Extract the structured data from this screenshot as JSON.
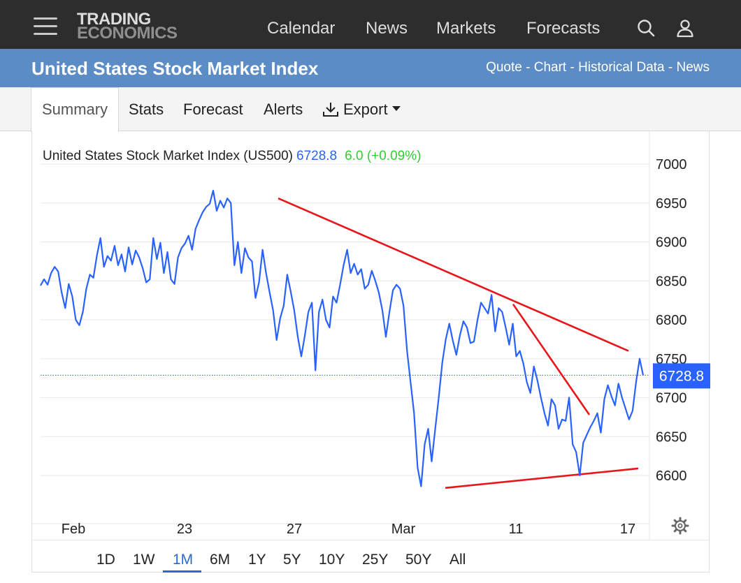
{
  "brand": {
    "line1": "TRADING",
    "line2": "ECONOMICS"
  },
  "nav": {
    "calendar": "Calendar",
    "news": "News",
    "markets": "Markets",
    "forecasts": "Forecasts",
    "search_icon": "search-icon",
    "user_icon": "user-icon"
  },
  "page": {
    "title": "United States Stock Market Index",
    "links": "Quote - Chart - Historical Data - News"
  },
  "tabs": {
    "summary": "Summary",
    "stats": "Stats",
    "forecast": "Forecast",
    "alerts": "Alerts",
    "export": "Export"
  },
  "quote": {
    "name": "United States Stock Market Index (US500)",
    "price": "6728.8",
    "change": "6.0 (+0.09%)",
    "last_label": "6728.8"
  },
  "ranges": [
    "1D",
    "1W",
    "1M",
    "6M",
    "1Y",
    "5Y",
    "10Y",
    "25Y",
    "50Y",
    "All"
  ],
  "active_range": "1M",
  "colors": {
    "line": "#2962ff",
    "trend": "#e8161b",
    "up": "#33cc33",
    "accent": "#2b6ac9",
    "title_bar": "#5c8cc5",
    "nav": "#2d2d2d"
  },
  "chart_data": {
    "type": "line",
    "x_tick_labels": [
      "Feb",
      "23",
      "27",
      "Mar",
      "11",
      "17"
    ],
    "y_ticks": [
      6600,
      6650,
      6700,
      6750,
      6800,
      6850,
      6900,
      6950,
      7000
    ],
    "ylim": [
      6550,
      7010
    ],
    "last_value": 6728.8,
    "grid": true,
    "series": [
      {
        "values": [
          6844,
          6852,
          6845,
          6860,
          6868,
          6862,
          6835,
          6815,
          6846,
          6830,
          6800,
          6793,
          6810,
          6840,
          6858,
          6854,
          6883,
          6905,
          6868,
          6882,
          6876,
          6895,
          6870,
          6884,
          6862,
          6893,
          6871,
          6889,
          6880,
          6866,
          6848,
          6852,
          6905,
          6878,
          6899,
          6860,
          6887,
          6852,
          6846,
          6880,
          6892,
          6898,
          6908,
          6890,
          6917,
          6928,
          6938,
          6945,
          6949,
          6966,
          6940,
          6953,
          6944,
          6956,
          6950,
          6870,
          6900,
          6860,
          6892,
          6880,
          6875,
          6828,
          6848,
          6890,
          6860,
          6835,
          6812,
          6774,
          6802,
          6818,
          6858,
          6836,
          6812,
          6778,
          6753,
          6780,
          6810,
          6822,
          6735,
          6810,
          6826,
          6800,
          6790,
          6830,
          6822,
          6845,
          6870,
          6890,
          6860,
          6872,
          6858,
          6865,
          6840,
          6845,
          6863,
          6850,
          6835,
          6812,
          6778,
          6810,
          6838,
          6845,
          6840,
          6818,
          6760,
          6720,
          6680,
          6610,
          6586,
          6640,
          6660,
          6618,
          6660,
          6700,
          6745,
          6775,
          6795,
          6773,
          6755,
          6780,
          6798,
          6790,
          6770,
          6772,
          6800,
          6822,
          6815,
          6808,
          6832,
          6785,
          6815,
          6810,
          6790,
          6768,
          6795,
          6753,
          6760,
          6744,
          6720,
          6706,
          6740,
          6722,
          6700,
          6680,
          6664,
          6698,
          6690,
          6660,
          6672,
          6670,
          6700,
          6640,
          6630,
          6600,
          6642,
          6652,
          6662,
          6670,
          6680,
          6655,
          6698,
          6716,
          6702,
          6690,
          6718,
          6700,
          6686,
          6672,
          6683,
          6720,
          6750,
          6728.8
        ]
      }
    ],
    "annotations": [
      {
        "type": "trendline",
        "from": [
          6956,
          6956
        ],
        "to": [
          6760,
          6760
        ]
      },
      {
        "type": "trendline",
        "from": [
          6584,
          6584
        ],
        "to": [
          6609,
          6609
        ]
      },
      {
        "type": "trendline",
        "from": [
          6820,
          6820
        ],
        "to": [
          6678,
          6678
        ]
      }
    ]
  }
}
